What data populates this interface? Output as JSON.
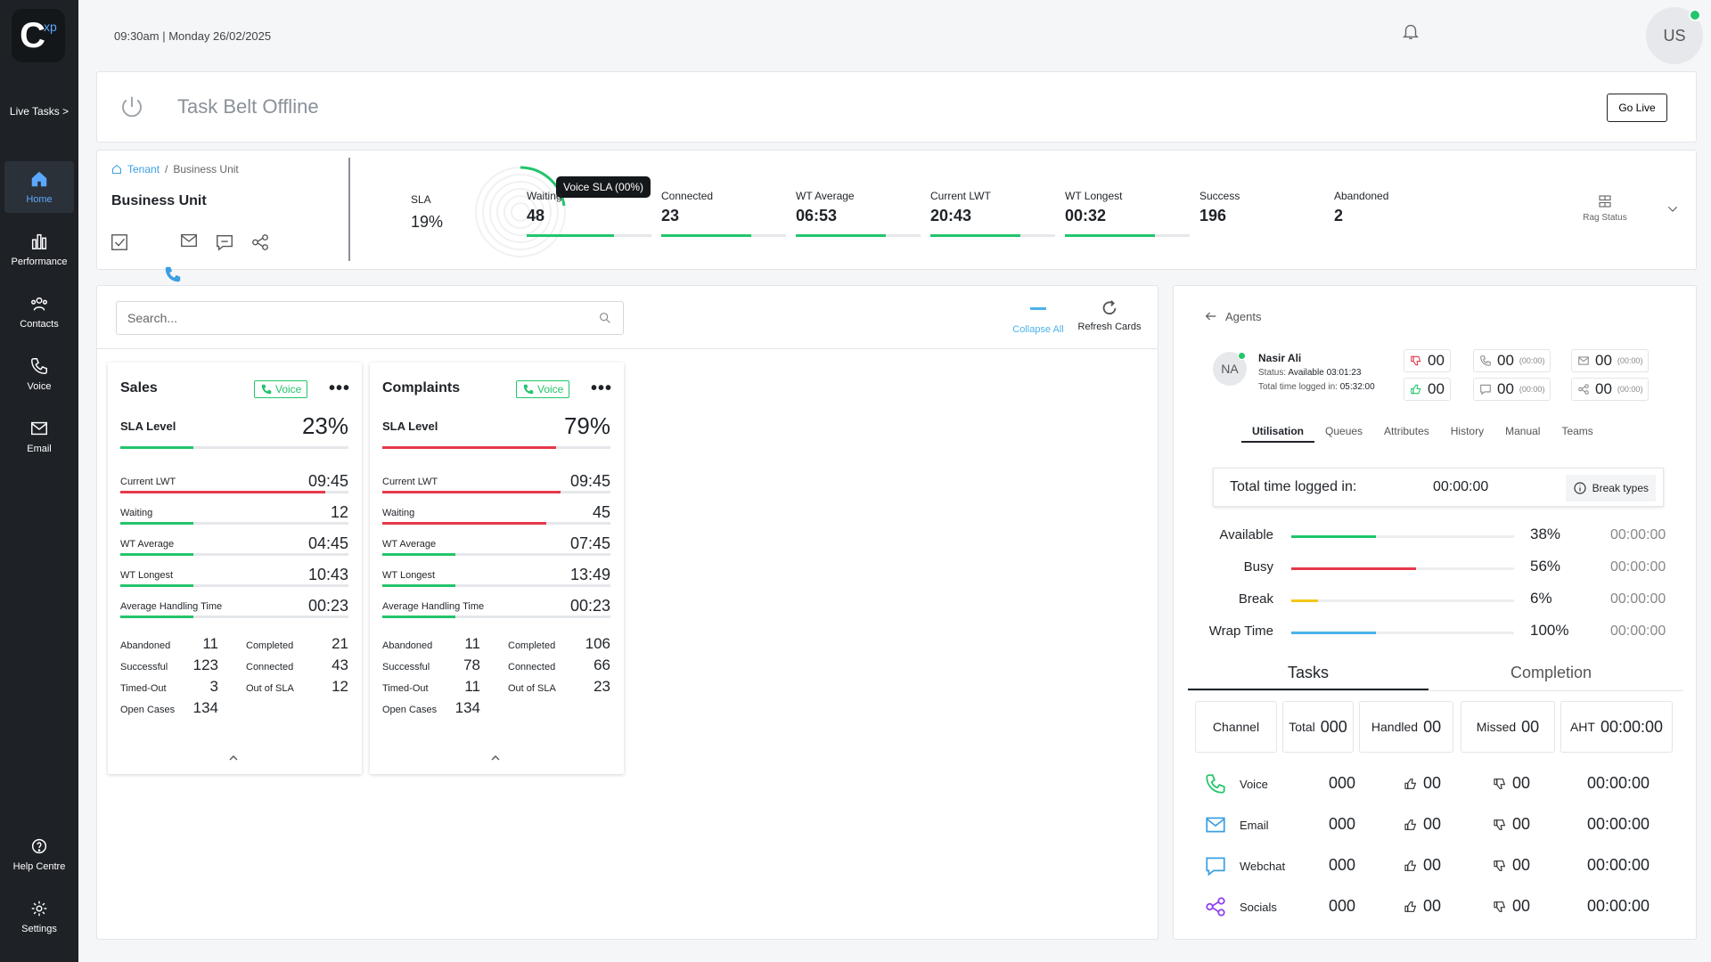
{
  "app": {
    "logo_main": "C",
    "logo_sup": "xp",
    "live_tasks": "Live Tasks >"
  },
  "nav": {
    "home": "Home",
    "performance": "Performance",
    "contacts": "Contacts",
    "voice": "Voice",
    "email": "Email",
    "help": "Help Centre",
    "settings": "Settings"
  },
  "header": {
    "datetime": "09:30am | Monday 26/02/2025",
    "user_initials": "US"
  },
  "taskbelt": {
    "title": "Task Belt Offline",
    "go_live": "Go Live"
  },
  "metrics": {
    "breadcrumb": {
      "tenant": "Tenant",
      "sep": "/",
      "current": "Business Unit"
    },
    "title": "Business Unit",
    "sla_label": "SLA",
    "sla_value": "19%",
    "sla_tooltip": "Voice SLA (00%)",
    "items": [
      {
        "label": "Waiting",
        "value": "48",
        "fill": 0.7
      },
      {
        "label": "Connected",
        "value": "23",
        "fill": 0.72
      },
      {
        "label": "WT Average",
        "value": "06:53",
        "fill": 0.72
      },
      {
        "label": "Current LWT",
        "value": "20:43",
        "fill": 0.72
      },
      {
        "label": "WT Longest",
        "value": "00:32",
        "fill": 0.72
      },
      {
        "label": "Success",
        "value": "196",
        "fill": 0
      },
      {
        "label": "Abandoned",
        "value": "2",
        "fill": 0
      }
    ],
    "rag_status": "Rag Status"
  },
  "queues": {
    "search_placeholder": "Search...",
    "collapse_all": "Collapse All",
    "refresh_cards": "Refresh Cards",
    "cards": [
      {
        "name": "Sales",
        "channel": "Voice",
        "sla_label": "SLA Level",
        "sla_value": "23%",
        "sla_fill": 0.32,
        "sla_color": "#22c56b",
        "rows": [
          {
            "label": "Current LWT",
            "value": "09:45",
            "fill": 0.9,
            "color": "#e5394b"
          },
          {
            "label": "Waiting",
            "value": "12",
            "fill": 0.32,
            "color": "#22c56b"
          },
          {
            "label": "WT Average",
            "value": "04:45",
            "fill": 0.32,
            "color": "#22c56b"
          },
          {
            "label": "WT Longest",
            "value": "10:43",
            "fill": 0.32,
            "color": "#22c56b"
          },
          {
            "label": "Average Handling Time",
            "value": "00:23",
            "fill": 0.32,
            "color": "#22c56b"
          }
        ],
        "stats_left": [
          {
            "label": "Abandoned",
            "value": "11"
          },
          {
            "label": "Successful",
            "value": "123"
          },
          {
            "label": "Timed-Out",
            "value": "3"
          },
          {
            "label": "Open Cases",
            "value": "134"
          }
        ],
        "stats_right": [
          {
            "label": "Completed",
            "value": "21"
          },
          {
            "label": "Connected",
            "value": "43"
          },
          {
            "label": "Out of SLA",
            "value": "12"
          }
        ]
      },
      {
        "name": "Complaints",
        "channel": "Voice",
        "sla_label": "SLA Level",
        "sla_value": "79%",
        "sla_fill": 0.76,
        "sla_color": "#e5394b",
        "rows": [
          {
            "label": "Current LWT",
            "value": "09:45",
            "fill": 0.78,
            "color": "#e5394b"
          },
          {
            "label": "Waiting",
            "value": "45",
            "fill": 0.72,
            "color": "#e5394b"
          },
          {
            "label": "WT Average",
            "value": "07:45",
            "fill": 0.32,
            "color": "#22c56b"
          },
          {
            "label": "WT Longest",
            "value": "13:49",
            "fill": 0.32,
            "color": "#22c56b"
          },
          {
            "label": "Average Handling Time",
            "value": "00:23",
            "fill": 0.32,
            "color": "#22c56b"
          }
        ],
        "stats_left": [
          {
            "label": "Abandoned",
            "value": "11"
          },
          {
            "label": "Successful",
            "value": "78"
          },
          {
            "label": "Timed-Out",
            "value": "11"
          },
          {
            "label": "Open Cases",
            "value": "134"
          }
        ],
        "stats_right": [
          {
            "label": "Completed",
            "value": "106"
          },
          {
            "label": "Connected",
            "value": "66"
          },
          {
            "label": "Out of SLA",
            "value": "23"
          }
        ]
      }
    ]
  },
  "agents": {
    "back_label": "Agents",
    "agent": {
      "initials": "NA",
      "name": "Nasir Ali",
      "status_label": "Status:",
      "status_value": "Available",
      "status_time": "03:01:23",
      "logged_label": "Total time logged in:",
      "logged_value": "05:32:00"
    },
    "chips": {
      "down": "00",
      "up": "00",
      "voice": "00",
      "voice_t": "(00:00)",
      "chat": "00",
      "chat_t": "(00:00)",
      "email": "00",
      "email_t": "(00:00)",
      "share": "00",
      "share_t": "(00:00)"
    },
    "tabs": [
      "Utilisation",
      "Queues",
      "Attributes",
      "History",
      "Manual",
      "Teams"
    ],
    "total_logged_label": "Total time logged in:",
    "total_logged_value": "00:00:00",
    "break_types": "Break types",
    "utilisation": [
      {
        "label": "Available",
        "pct": "38%",
        "fill": 0.38,
        "color": "#22c56b",
        "time": "00:00:00"
      },
      {
        "label": "Busy",
        "pct": "56%",
        "fill": 0.56,
        "color": "#e5394b",
        "time": "00:00:00"
      },
      {
        "label": "Break",
        "pct": "6%",
        "fill": 0.12,
        "color": "#f5c518",
        "time": "00:00:00"
      },
      {
        "label": "Wrap Time",
        "pct": "100%",
        "fill": 0.38,
        "color": "#4ab3ea",
        "time": "00:00:00"
      }
    ],
    "big_tabs": {
      "tasks": "Tasks",
      "completion": "Completion"
    },
    "table_head": {
      "channel": "Channel",
      "total_l": "Total",
      "total_v": "000",
      "handled_l": "Handled",
      "handled_v": "00",
      "missed_l": "Missed",
      "missed_v": "00",
      "aht_l": "AHT",
      "aht_v": "00:00:00"
    },
    "table_rows": [
      {
        "name": "Voice",
        "total": "000",
        "handled": "00",
        "missed": "00",
        "aht": "00:00:00",
        "icon": "phone-icon",
        "color": "#22c56b"
      },
      {
        "name": "Email",
        "total": "000",
        "handled": "00",
        "missed": "00",
        "aht": "00:00:00",
        "icon": "mail-icon",
        "color": "#3b9fe0"
      },
      {
        "name": "Webchat",
        "total": "000",
        "handled": "00",
        "missed": "00",
        "aht": "00:00:00",
        "icon": "chat-icon",
        "color": "#3b9fe0"
      },
      {
        "name": "Socials",
        "total": "000",
        "handled": "00",
        "missed": "00",
        "aht": "00:00:00",
        "icon": "share-icon",
        "color": "#8a3ff0"
      }
    ]
  }
}
